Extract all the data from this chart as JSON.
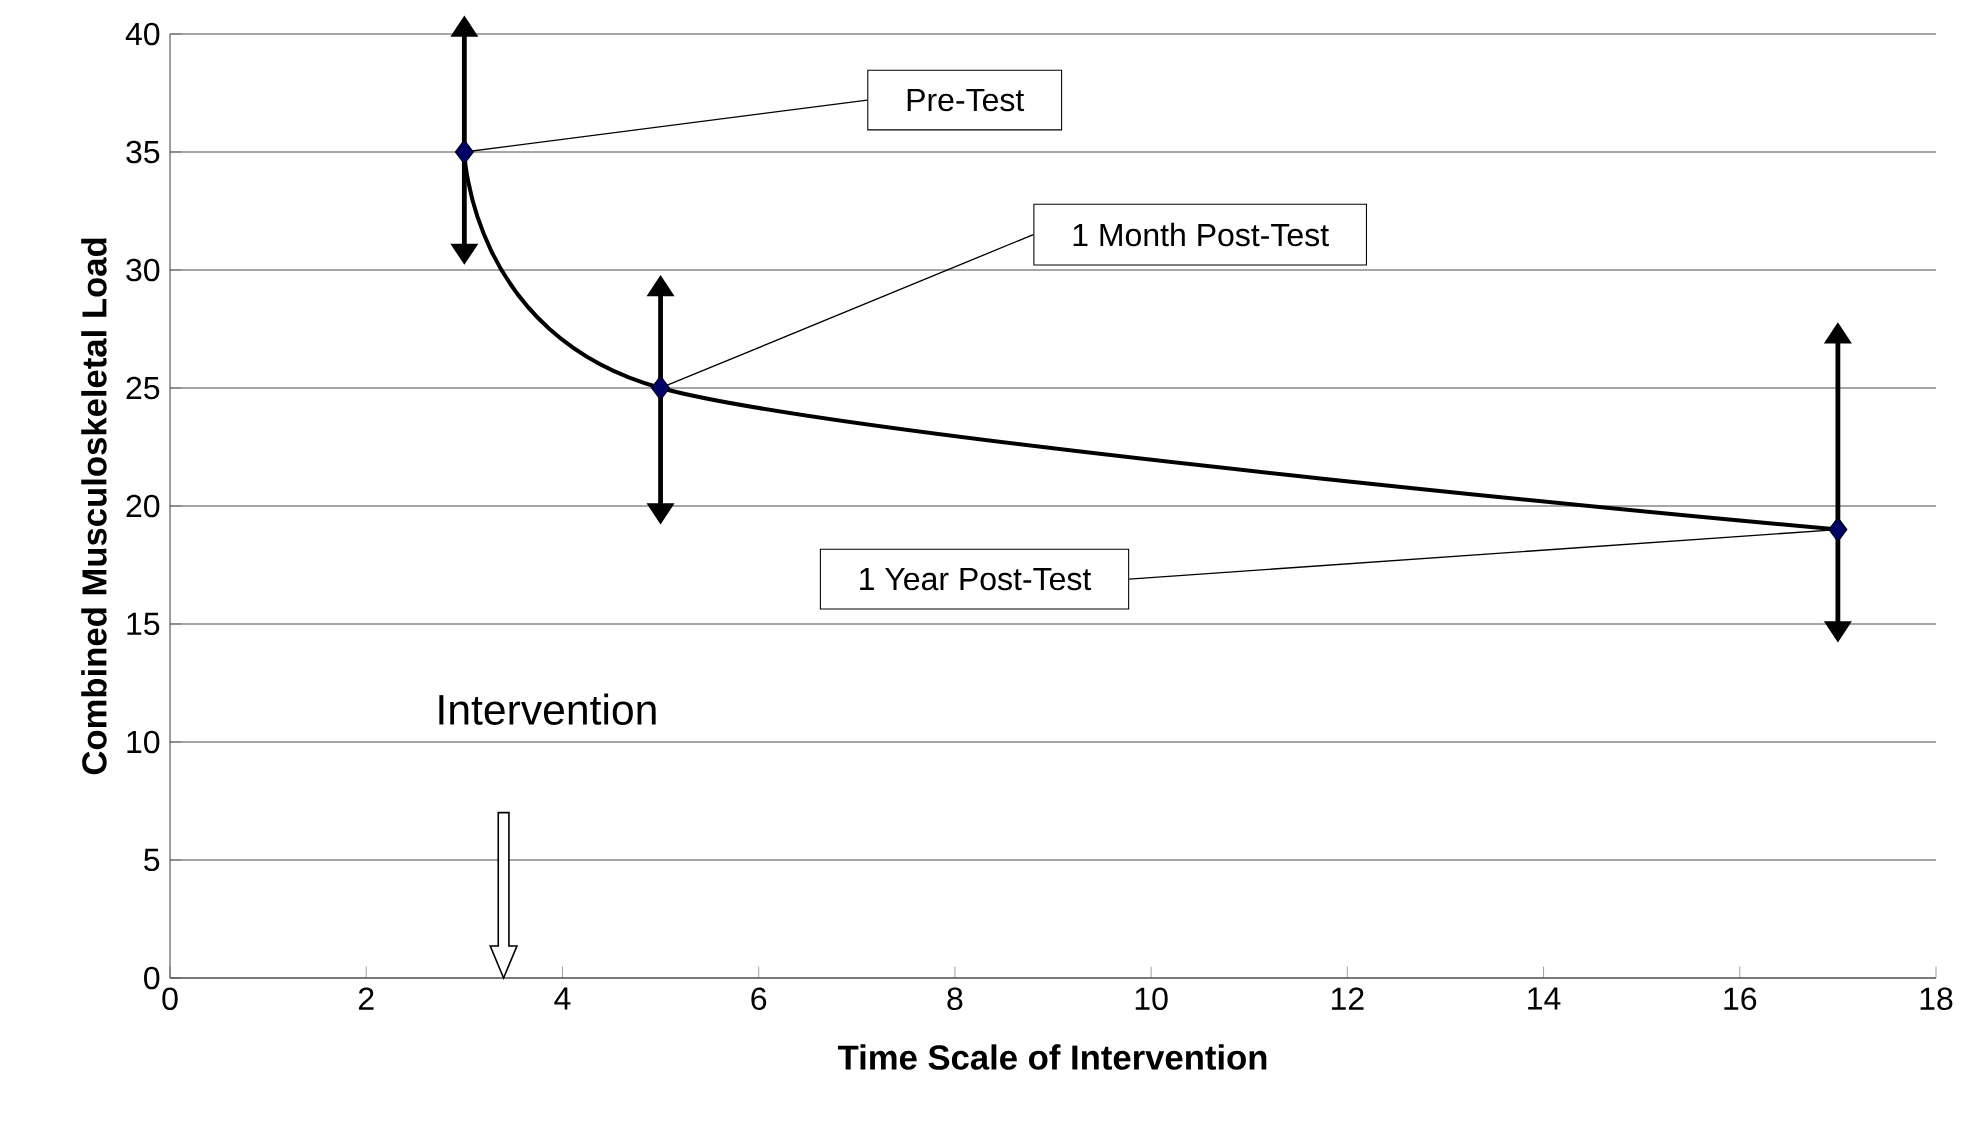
{
  "chart_data": {
    "type": "line",
    "xlabel": "Time Scale of Intervention",
    "ylabel": "Combined Musculoskeletal Load",
    "x": [
      3,
      5,
      17
    ],
    "values": [
      35,
      25,
      19
    ],
    "color": "#000000",
    "marker": "diamond",
    "line_style": "solid",
    "errors": [
      [
        31,
        40
      ],
      [
        20,
        29
      ],
      [
        15,
        27
      ]
    ],
    "xlim": [
      0,
      18
    ],
    "xticks": [
      0,
      2,
      4,
      6,
      8,
      10,
      12,
      14,
      16,
      18
    ],
    "ylim": [
      0,
      40
    ],
    "yticks": [
      0,
      5,
      10,
      15,
      20,
      25,
      30,
      35,
      40
    ],
    "grid": "y",
    "annotations": [
      {
        "text": "Pre-Test",
        "x": 3,
        "y": 35
      },
      {
        "text": "1 Month Post-Test",
        "x": 5,
        "y": 25
      },
      {
        "text": "1 Year Post-Test",
        "x": 17,
        "y": 19
      },
      "Intervention"
    ]
  }
}
